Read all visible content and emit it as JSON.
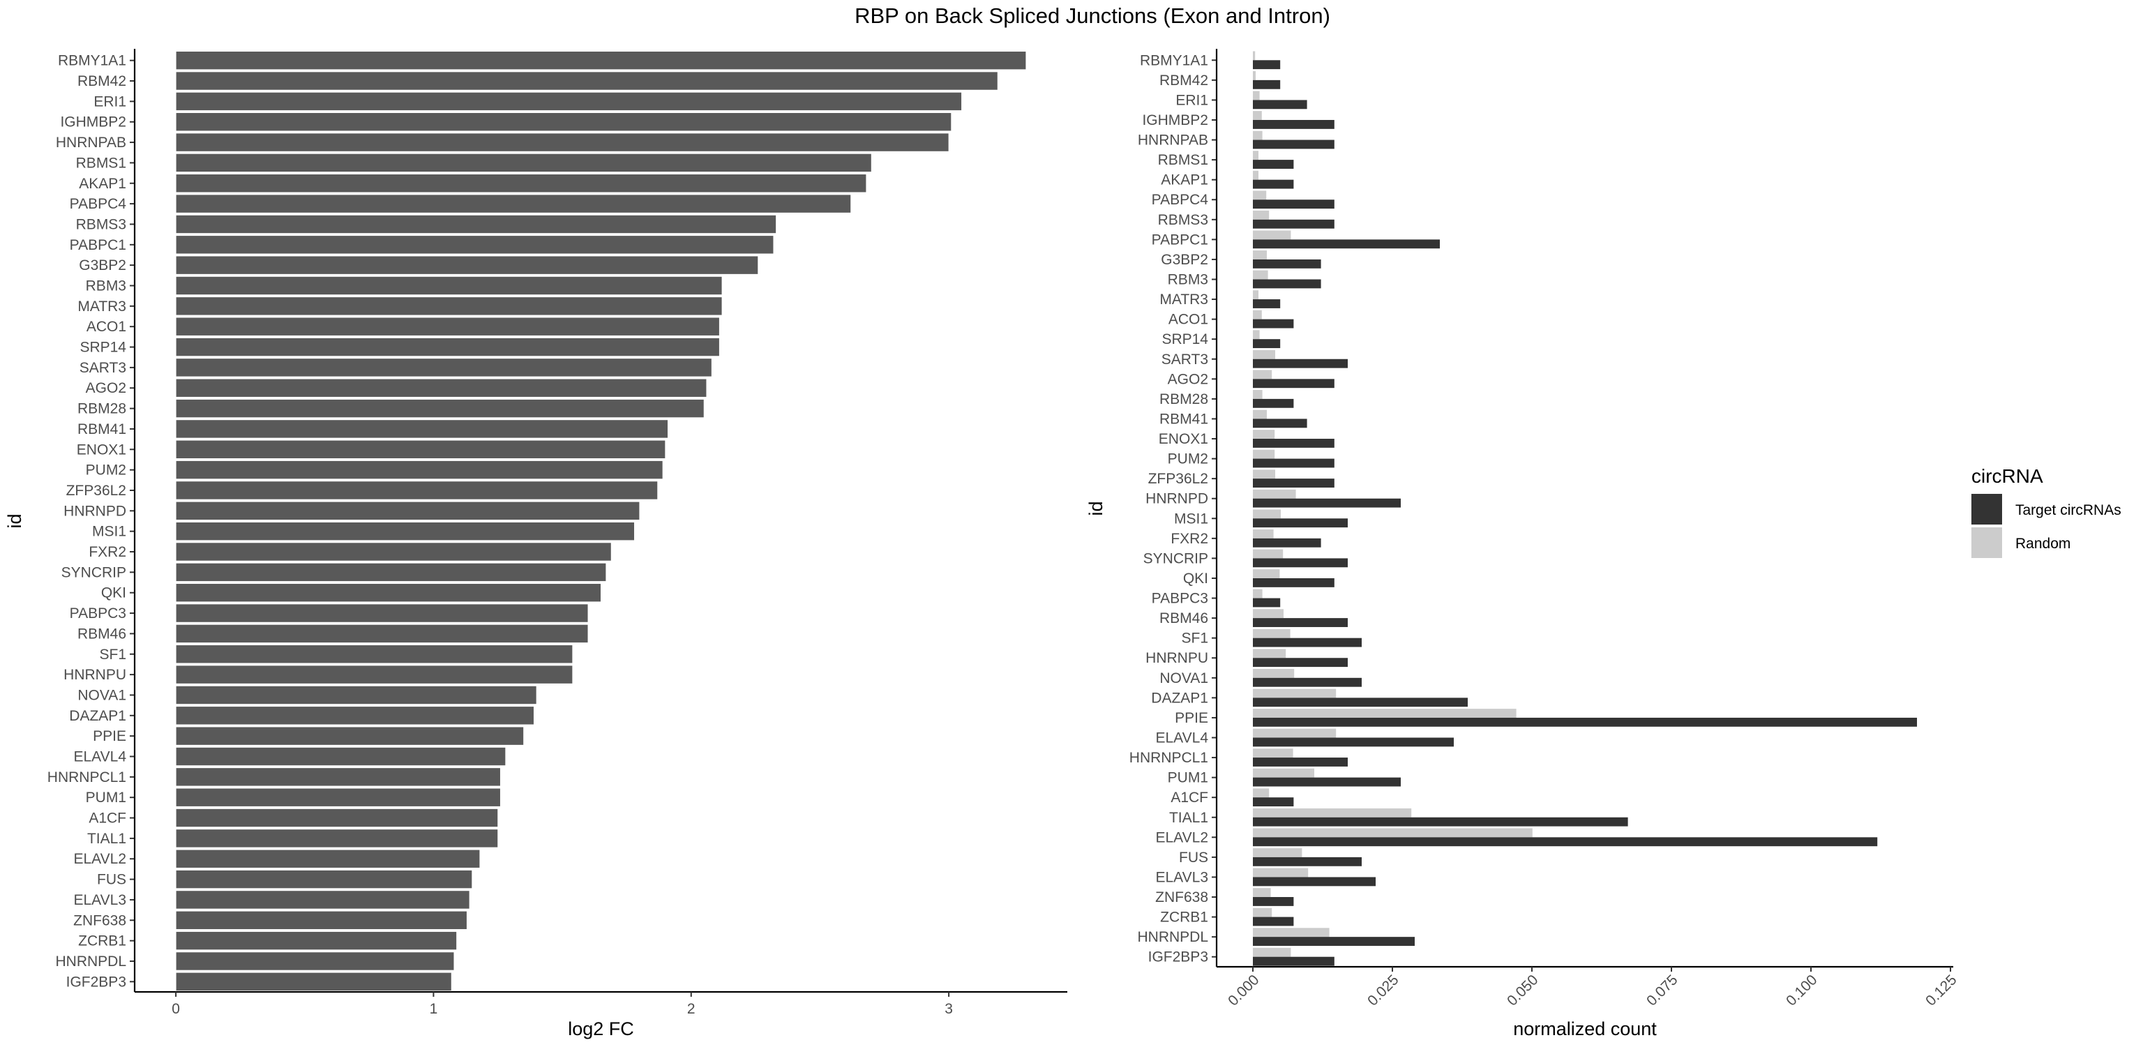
{
  "title": "RBP on Back Spliced Junctions (Exon and Intron)",
  "chart_data": [
    {
      "type": "bar",
      "orientation": "horizontal",
      "title": "",
      "xlabel": "log2 FC",
      "ylabel": "id",
      "xlim": [
        -0.16,
        3.46
      ],
      "xticks": [
        0,
        1,
        2,
        3
      ],
      "xtick_labels": [
        "0",
        "1",
        "2",
        "3"
      ],
      "colors": {
        "bar": "#595959",
        "bar_edge": "#ffffff"
      },
      "grid": false,
      "categories": [
        "RBMY1A1",
        "RBM42",
        "ERI1",
        "IGHMBP2",
        "HNRNPAB",
        "RBMS1",
        "AKAP1",
        "PABPC4",
        "RBMS3",
        "PABPC1",
        "G3BP2",
        "RBM3",
        "MATR3",
        "ACO1",
        "SRP14",
        "SART3",
        "AGO2",
        "RBM28",
        "RBM41",
        "ENOX1",
        "PUM2",
        "ZFP36L2",
        "HNRNPD",
        "MSI1",
        "FXR2",
        "SYNCRIP",
        "QKI",
        "PABPC3",
        "RBM46",
        "SF1",
        "HNRNPU",
        "NOVA1",
        "DAZAP1",
        "PPIE",
        "ELAVL4",
        "HNRNPCL1",
        "PUM1",
        "A1CF",
        "TIAL1",
        "ELAVL2",
        "FUS",
        "ELAVL3",
        "ZNF638",
        "ZCRB1",
        "HNRNPDL",
        "IGF2BP3"
      ],
      "values": [
        3.3,
        3.19,
        3.05,
        3.01,
        3.0,
        2.7,
        2.68,
        2.62,
        2.33,
        2.32,
        2.26,
        2.12,
        2.12,
        2.11,
        2.11,
        2.08,
        2.06,
        2.05,
        1.91,
        1.9,
        1.89,
        1.87,
        1.8,
        1.78,
        1.69,
        1.67,
        1.65,
        1.6,
        1.6,
        1.54,
        1.54,
        1.4,
        1.39,
        1.35,
        1.28,
        1.26,
        1.26,
        1.25,
        1.25,
        1.18,
        1.15,
        1.14,
        1.13,
        1.09,
        1.08,
        1.07
      ]
    },
    {
      "type": "bar",
      "orientation": "horizontal",
      "title": "",
      "xlabel": "normalized count",
      "ylabel": "id",
      "xlim": [
        -0.0065,
        0.1255
      ],
      "xticks": [
        0,
        0.025,
        0.05,
        0.075,
        0.1,
        0.125
      ],
      "xtick_labels": [
        "0.000",
        "0.025",
        "0.050",
        "0.075",
        "0.100",
        "0.125"
      ],
      "grid": false,
      "legend": {
        "title": "circRNA",
        "position": "right"
      },
      "categories": [
        "RBMY1A1",
        "RBM42",
        "ERI1",
        "IGHMBP2",
        "HNRNPAB",
        "RBMS1",
        "AKAP1",
        "PABPC4",
        "RBMS3",
        "PABPC1",
        "G3BP2",
        "RBM3",
        "MATR3",
        "ACO1",
        "SRP14",
        "SART3",
        "AGO2",
        "RBM28",
        "RBM41",
        "ENOX1",
        "PUM2",
        "ZFP36L2",
        "HNRNPD",
        "MSI1",
        "FXR2",
        "SYNCRIP",
        "QKI",
        "PABPC3",
        "RBM46",
        "SF1",
        "HNRNPU",
        "NOVA1",
        "DAZAP1",
        "PPIE",
        "ELAVL4",
        "HNRNPCL1",
        "PUM1",
        "A1CF",
        "TIAL1",
        "ELAVL2",
        "FUS",
        "ELAVL3",
        "ZNF638",
        "ZCRB1",
        "HNRNPDL",
        "IGF2BP3"
      ],
      "series": [
        {
          "name": "Target circRNAs",
          "color": "#333333",
          "values": [
            0.0049,
            0.0049,
            0.0097,
            0.0146,
            0.0146,
            0.0073,
            0.0073,
            0.0146,
            0.0146,
            0.0335,
            0.0122,
            0.0122,
            0.0049,
            0.0073,
            0.0049,
            0.017,
            0.0146,
            0.0073,
            0.0097,
            0.0146,
            0.0146,
            0.0146,
            0.0265,
            0.017,
            0.0122,
            0.017,
            0.0146,
            0.0049,
            0.017,
            0.0195,
            0.017,
            0.0195,
            0.0385,
            0.119,
            0.036,
            0.017,
            0.0265,
            0.0073,
            0.0672,
            0.1119,
            0.0195,
            0.022,
            0.0073,
            0.0073,
            0.029,
            0.0146
          ]
        },
        {
          "name": "Random",
          "color": "#cccccc",
          "values": [
            0.0004,
            0.0005,
            0.0012,
            0.0016,
            0.0017,
            0.001,
            0.001,
            0.0024,
            0.0029,
            0.0068,
            0.0025,
            0.0027,
            0.001,
            0.0016,
            0.0012,
            0.004,
            0.0034,
            0.0017,
            0.0025,
            0.0039,
            0.0039,
            0.004,
            0.0077,
            0.005,
            0.0037,
            0.0054,
            0.0048,
            0.0017,
            0.0055,
            0.0067,
            0.0059,
            0.0074,
            0.0149,
            0.0472,
            0.0149,
            0.0072,
            0.011,
            0.0029,
            0.0284,
            0.0501,
            0.0088,
            0.0099,
            0.0032,
            0.0034,
            0.0137,
            0.0068
          ]
        }
      ]
    }
  ]
}
